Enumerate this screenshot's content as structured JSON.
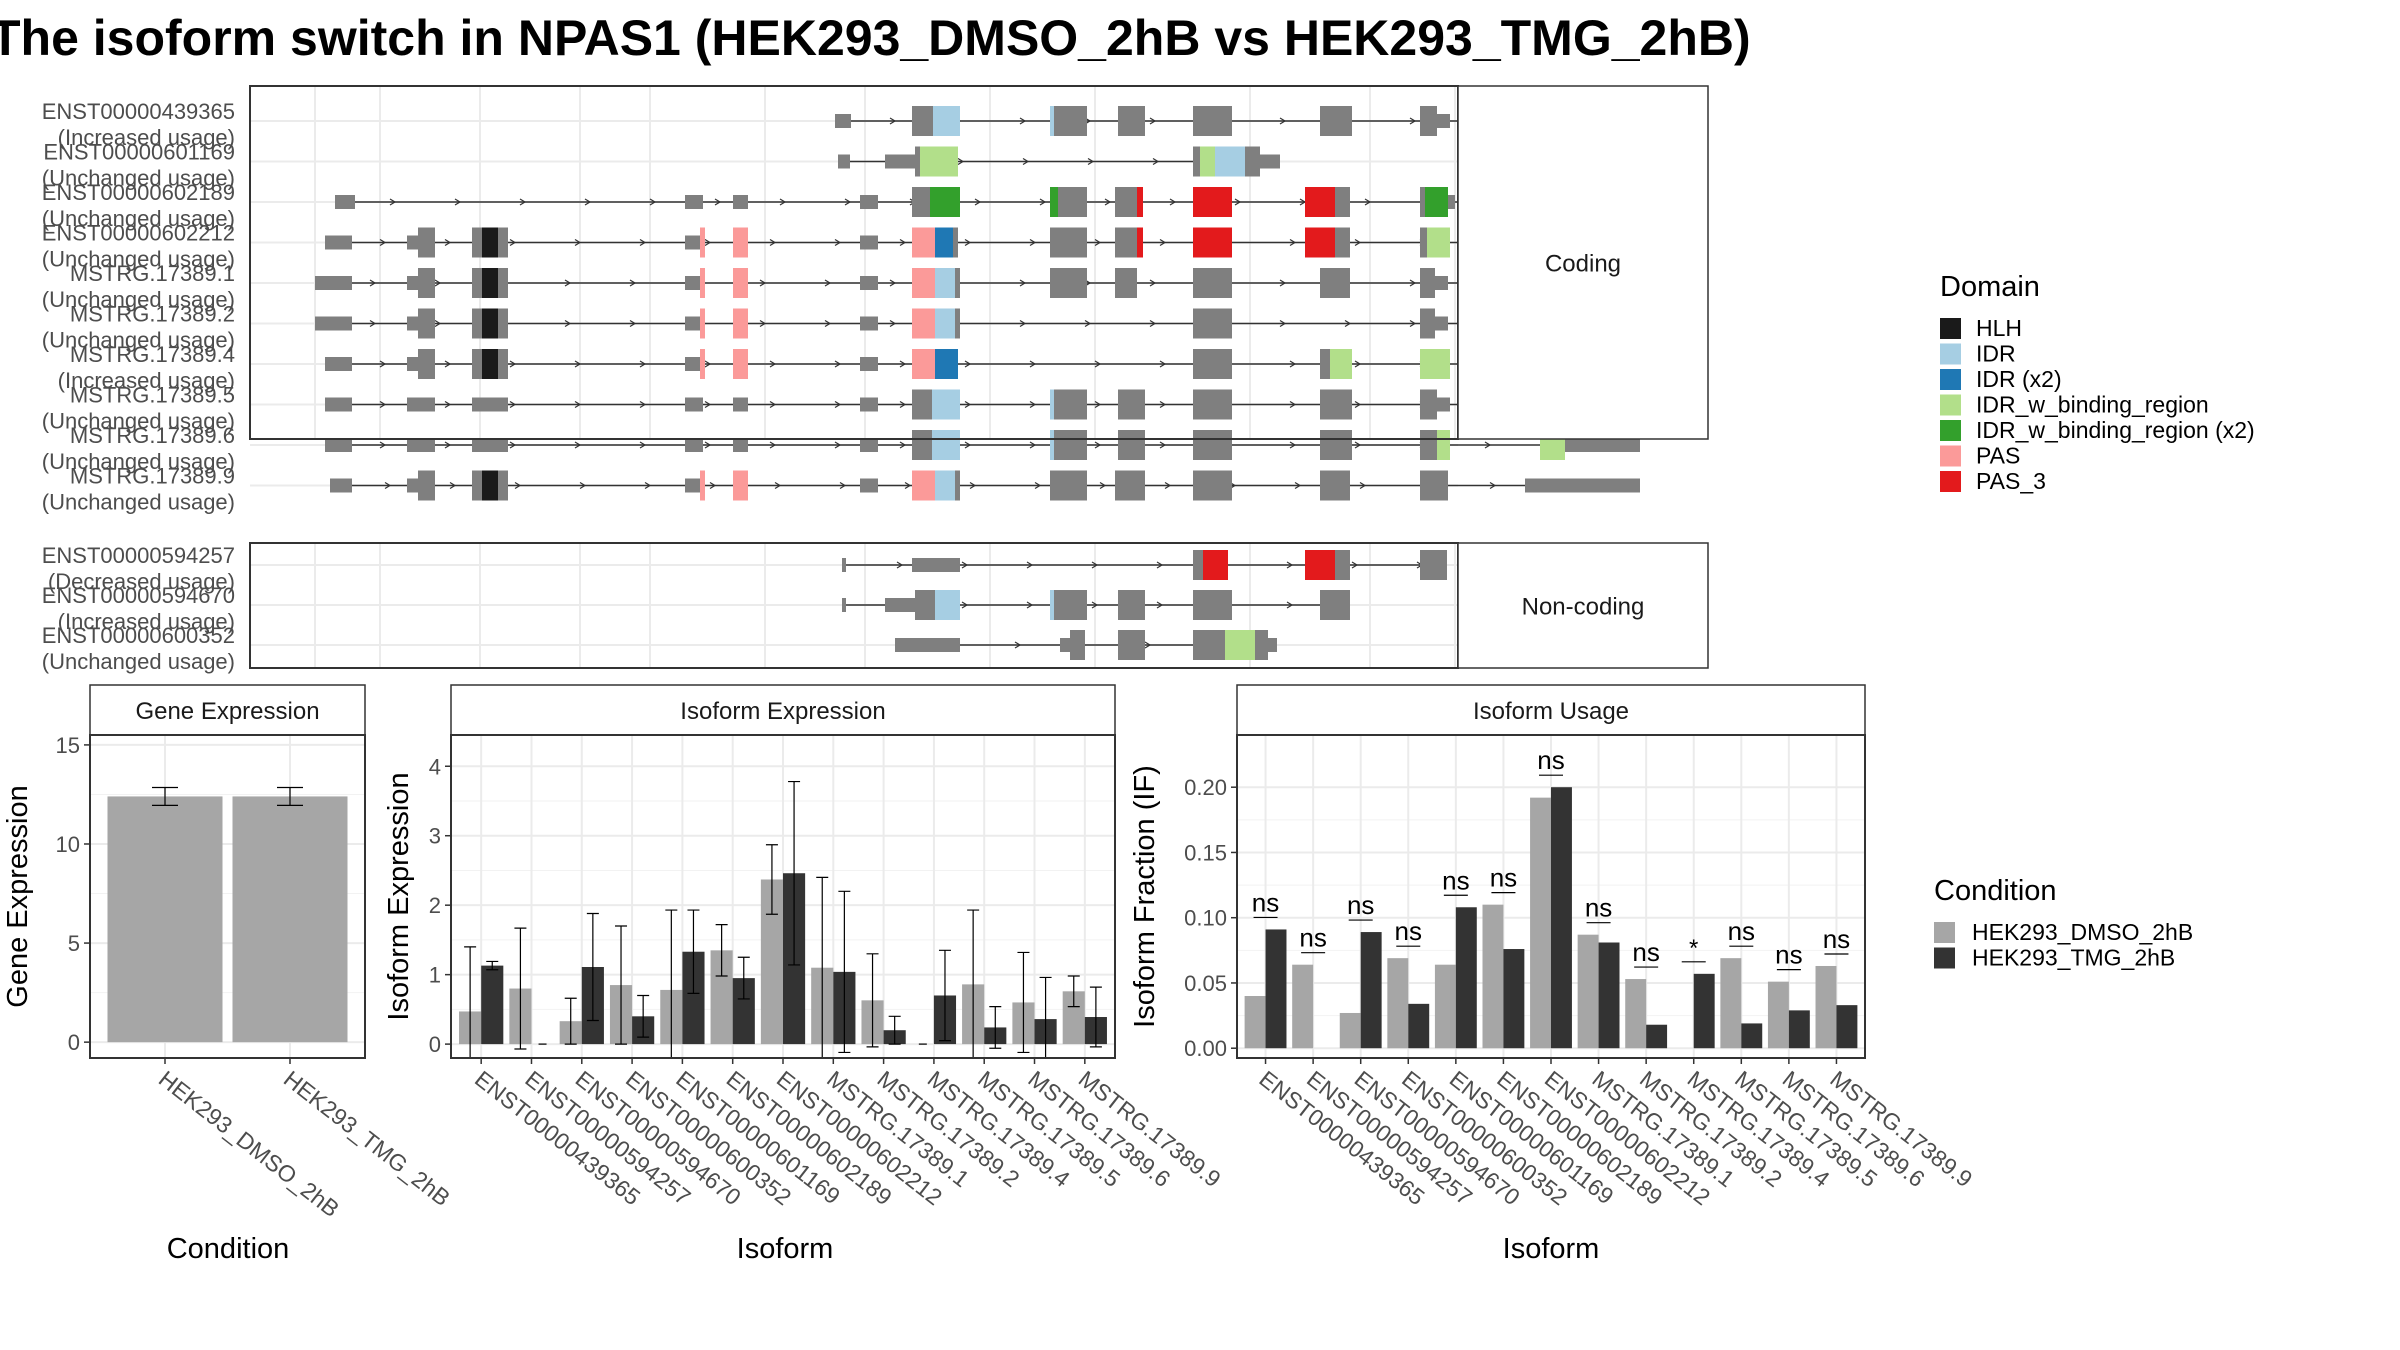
{
  "title": "The isoform switch in NPAS1 (HEK293_DMSO_2hB vs HEK293_TMG_2hB)",
  "colors": {
    "exon": "#7f7f7f",
    "HLH": "#1a1a1a",
    "IDR": "#a6cee3",
    "IDR (x2)": "#1f78b4",
    "IDR_w_binding_region": "#b2df8a",
    "IDR_w_binding_region (x2)": "#33a02c",
    "PAS": "#fb9a99",
    "PAS_3": "#e31a1c",
    "dmso": "#a6a6a6",
    "tmg": "#333333"
  },
  "domain_legend": {
    "title": "Domain",
    "items": [
      "HLH",
      "IDR",
      "IDR (x2)",
      "IDR_w_binding_region",
      "IDR_w_binding_region (x2)",
      "PAS",
      "PAS_3"
    ]
  },
  "condition_legend": {
    "title": "Condition",
    "items": [
      "HEK293_DMSO_2hB",
      "HEK293_TMG_2hB"
    ]
  },
  "structure": {
    "coding_label": "Coding",
    "noncoding_label": "Non-coding",
    "coding": [
      {
        "id": "ENST00000439365",
        "usage": "(Increased usage)"
      },
      {
        "id": "ENST00000601169",
        "usage": "(Unchanged usage)"
      },
      {
        "id": "ENST00000602189",
        "usage": "(Unchanged usage)"
      },
      {
        "id": "ENST00000602212",
        "usage": "(Unchanged usage)"
      },
      {
        "id": "MSTRG.17389.1",
        "usage": "(Unchanged usage)"
      },
      {
        "id": "MSTRG.17389.2",
        "usage": "(Unchanged usage)"
      },
      {
        "id": "MSTRG.17389.4",
        "usage": "(Increased usage)"
      },
      {
        "id": "MSTRG.17389.5",
        "usage": "(Unchanged usage)"
      },
      {
        "id": "MSTRG.17389.6",
        "usage": "(Unchanged usage)"
      },
      {
        "id": "MSTRG.17389.9",
        "usage": "(Unchanged usage)"
      }
    ],
    "noncoding": [
      {
        "id": "ENST00000594257",
        "usage": "(Decreased usage)"
      },
      {
        "id": "ENST00000594670",
        "usage": "(Increased usage)"
      },
      {
        "id": "ENST00000600352",
        "usage": "(Unchanged usage)"
      }
    ]
  },
  "chart_data": [
    {
      "type": "bar",
      "title": "Gene Expression",
      "xlabel": "Condition",
      "ylabel": "Gene Expression",
      "ylim": [
        -0.8,
        15.5
      ],
      "yticks": [
        0,
        5,
        10,
        15
      ],
      "categories": [
        "HEK293_DMSO_2hB",
        "HEK293_TMG_2hB"
      ],
      "values": [
        12.4,
        12.4
      ],
      "errors": [
        0.45,
        0.45
      ]
    },
    {
      "type": "bar",
      "title": "Isoform Expression",
      "xlabel": "Isoform",
      "ylabel": "Isoform Expression",
      "ylim": [
        -0.2,
        4.45
      ],
      "yticks": [
        0,
        1,
        2,
        3,
        4
      ],
      "categories": [
        "ENST00000439365",
        "ENST00000594257",
        "ENST00000594670",
        "ENST00000600352",
        "ENST00000601169",
        "ENST00000602189",
        "ENST00000602212",
        "MSTRG.17389.1",
        "MSTRG.17389.2",
        "MSTRG.17389.4",
        "MSTRG.17389.5",
        "MSTRG.17389.6",
        "MSTRG.17389.9"
      ],
      "series": [
        {
          "name": "HEK293_DMSO_2hB",
          "values": [
            0.47,
            0.8,
            0.33,
            0.85,
            0.78,
            1.35,
            2.37,
            1.1,
            0.63,
            0.0,
            0.86,
            0.6,
            0.76
          ],
          "errors": [
            0.93,
            0.87,
            0.33,
            0.85,
            1.15,
            0.37,
            0.5,
            1.3,
            0.67,
            0.0,
            1.07,
            0.72,
            0.22
          ]
        },
        {
          "name": "HEK293_TMG_2hB",
          "values": [
            1.13,
            0.0,
            1.11,
            0.4,
            1.33,
            0.95,
            2.46,
            1.04,
            0.2,
            0.7,
            0.24,
            0.36,
            0.39
          ],
          "errors": [
            0.06,
            0.0,
            0.77,
            0.3,
            0.6,
            0.3,
            1.32,
            1.16,
            0.2,
            0.65,
            0.3,
            0.6,
            0.43
          ]
        }
      ]
    },
    {
      "type": "bar",
      "title": "Isoform Usage",
      "xlabel": "Isoform",
      "ylabel": "Isoform Fraction (IF)",
      "ylim": [
        -0.0075,
        0.24
      ],
      "yticks": [
        0.0,
        0.05,
        0.1,
        0.15,
        0.2
      ],
      "ytick_labels": [
        "0.00",
        "0.05",
        "0.10",
        "0.15",
        "0.20"
      ],
      "categories": [
        "ENST00000439365",
        "ENST00000594257",
        "ENST00000594670",
        "ENST00000600352",
        "ENST00000601169",
        "ENST00000602189",
        "ENST00000602212",
        "MSTRG.17389.1",
        "MSTRG.17389.2",
        "MSTRG.17389.4",
        "MSTRG.17389.5",
        "MSTRG.17389.6",
        "MSTRG.17389.9"
      ],
      "series": [
        {
          "name": "HEK293_DMSO_2hB",
          "values": [
            0.04,
            0.064,
            0.027,
            0.069,
            0.064,
            0.11,
            0.192,
            0.087,
            0.053,
            0.0,
            0.069,
            0.051,
            0.063
          ]
        },
        {
          "name": "HEK293_TMG_2hB",
          "values": [
            0.091,
            0.0,
            0.089,
            0.034,
            0.108,
            0.076,
            0.2,
            0.081,
            0.018,
            0.057,
            0.019,
            0.029,
            0.033
          ]
        }
      ],
      "significance": [
        "ns",
        "ns",
        "ns",
        "ns",
        "ns",
        "ns",
        "ns",
        "ns",
        "ns",
        "*",
        "ns",
        "ns",
        "ns"
      ]
    }
  ]
}
